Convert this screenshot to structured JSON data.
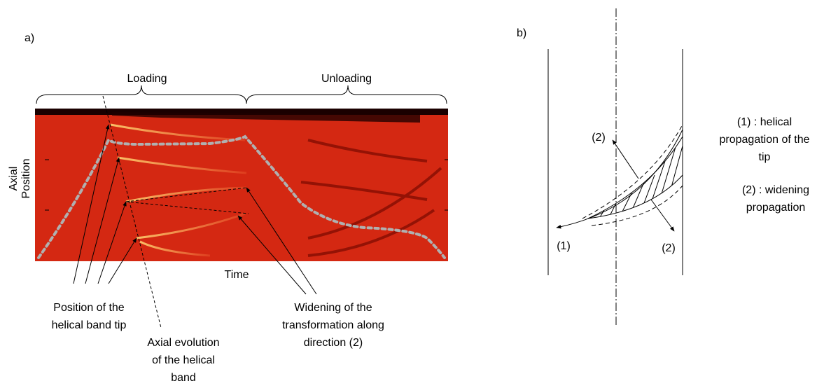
{
  "panel_a": {
    "label": "a)",
    "phases": [
      "Loading",
      "Unloading"
    ],
    "y_label": [
      "Axial",
      "Position"
    ],
    "x_label": "Time",
    "annotations": [
      {
        "lines": [
          "Position of the",
          "helical band tip"
        ]
      },
      {
        "lines": [
          "Axial evolution",
          "of the helical",
          "band"
        ]
      },
      {
        "lines": [
          "Widening of the",
          "transformation along",
          "direction (2)"
        ]
      }
    ]
  },
  "panel_b": {
    "label": "b)",
    "arrow_labels": [
      "(2)",
      "(1)",
      "(2)"
    ],
    "legend": [
      {
        "lines": [
          "(1) : helical",
          "propagation of the",
          "tip"
        ]
      },
      {
        "lines": [
          "(2) : widening",
          "propagation"
        ]
      }
    ]
  }
}
